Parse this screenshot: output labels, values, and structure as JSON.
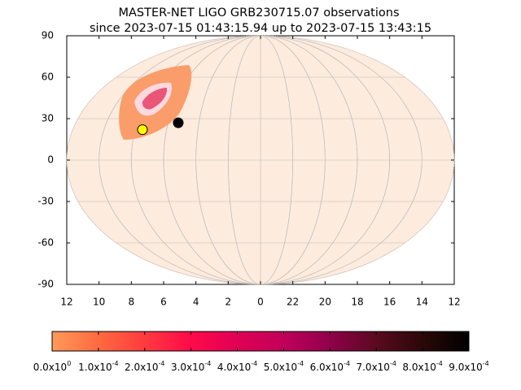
{
  "chart_data": {
    "type": "skymap",
    "title": "MASTER-NET LIGO GRB230715.07 observations",
    "subtitle": "since 2023-07-15 01:43:15.94 up to 2023-07-15 13:43:15",
    "x_labels": [
      "12",
      "10",
      "8",
      "6",
      "4",
      "2",
      "0",
      "22",
      "20",
      "18",
      "16",
      "14",
      "12"
    ],
    "ylim": [
      -90,
      90
    ],
    "yticks": [
      -90,
      -60,
      -30,
      0,
      30,
      60,
      90
    ],
    "grid": true,
    "points": [
      {
        "ra": 7.54,
        "dec": 22,
        "color": "#ffff00"
      },
      {
        "ra": 5.34,
        "dec": 27,
        "color": "#000000"
      }
    ],
    "colorbar": {
      "lim": [
        0,
        0.0009
      ],
      "colors": [
        "#ff9a5a",
        "#ff6a40",
        "#ff3a40",
        "#ff0a4a",
        "#e00055",
        "#c0005a",
        "#90004a",
        "#5a0a20",
        "#2a0808",
        "#000000"
      ],
      "ticks": [
        {
          "value": 0,
          "label": "0.0x10",
          "exp": "0"
        },
        {
          "value": 0.0001,
          "label": "1.0x10",
          "exp": "-4"
        },
        {
          "value": 0.0002,
          "label": "2.0x10",
          "exp": "-4"
        },
        {
          "value": 0.0003,
          "label": "3.0x10",
          "exp": "-4"
        },
        {
          "value": 0.0004,
          "label": "4.0x10",
          "exp": "-4"
        },
        {
          "value": 0.0005,
          "label": "5.0x10",
          "exp": "-4"
        },
        {
          "value": 0.0006,
          "label": "6.0x10",
          "exp": "-4"
        },
        {
          "value": 0.0007,
          "label": "7.0x10",
          "exp": "-4"
        },
        {
          "value": 0.0008,
          "label": "8.0x10",
          "exp": "-4"
        },
        {
          "value": 0.0009,
          "label": "9.0x10",
          "exp": "-4"
        }
      ]
    }
  }
}
